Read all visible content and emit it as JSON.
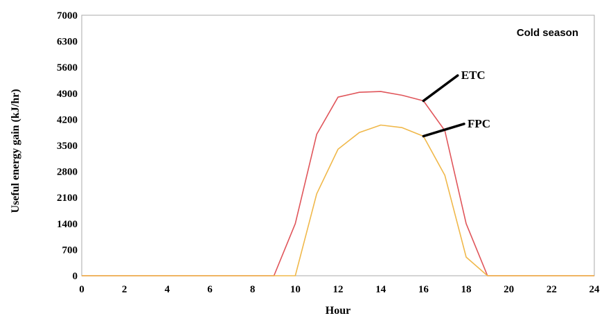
{
  "chart_data": {
    "type": "line",
    "title": "",
    "annotation_text": "Cold season",
    "xlabel": "Hour",
    "ylabel": "Useful energy gain (kJ/hr)",
    "xlim": [
      0,
      24
    ],
    "ylim": [
      0,
      7000
    ],
    "x_ticks": [
      0,
      2,
      4,
      6,
      8,
      10,
      12,
      14,
      16,
      18,
      20,
      22,
      24
    ],
    "y_ticks": [
      0,
      700,
      1400,
      2100,
      2800,
      3500,
      4200,
      4900,
      5600,
      6300,
      7000
    ],
    "grid": false,
    "series": [
      {
        "name": "ETC",
        "color": "#e0555a",
        "x": [
          0,
          1,
          2,
          3,
          4,
          5,
          6,
          7,
          8,
          9,
          10,
          11,
          12,
          13,
          14,
          15,
          16,
          17,
          18,
          19,
          20,
          21,
          22,
          23,
          24
        ],
        "y": [
          0,
          0,
          0,
          0,
          0,
          0,
          0,
          0,
          0,
          0,
          1400,
          3800,
          4800,
          4930,
          4950,
          4850,
          4700,
          3900,
          1400,
          0,
          0,
          0,
          0,
          0,
          0
        ]
      },
      {
        "name": "FPC",
        "color": "#f0b84a",
        "x": [
          0,
          1,
          2,
          3,
          4,
          5,
          6,
          7,
          8,
          9,
          10,
          11,
          12,
          13,
          14,
          15,
          16,
          17,
          18,
          19,
          20,
          21,
          22,
          23,
          24
        ],
        "y": [
          0,
          0,
          0,
          0,
          0,
          0,
          0,
          0,
          0,
          0,
          0,
          2200,
          3400,
          3850,
          4050,
          3980,
          3750,
          2700,
          500,
          0,
          0,
          0,
          0,
          0,
          0
        ]
      }
    ],
    "labels": [
      {
        "text": "ETC",
        "x": 17.7,
        "y": 5400,
        "arrow_to": [
          16.0,
          4700
        ]
      },
      {
        "text": "FPC",
        "x": 18.0,
        "y": 4100,
        "arrow_to": [
          16.0,
          3750
        ]
      }
    ]
  }
}
